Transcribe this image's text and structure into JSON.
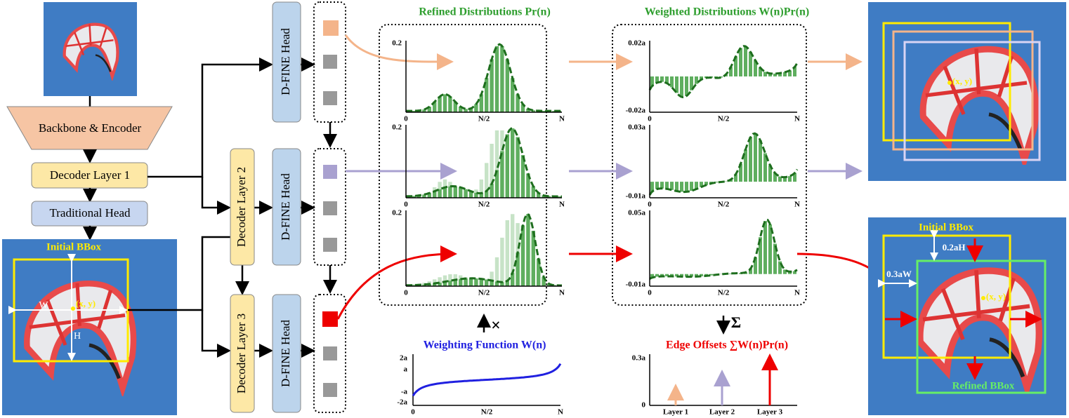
{
  "left": {
    "backbone": "Backbone & Encoder",
    "decoder1": "Decoder Layer 1",
    "traditional_head": "Traditional Head",
    "initial_box": {
      "label": "Initial BBox",
      "w": "W",
      "h": "H",
      "center": "(x, y)"
    }
  },
  "decoders": [
    "Decoder Layer 2",
    "Decoder Layer 3"
  ],
  "heads": [
    "D-FINE Head",
    "D-FINE Head",
    "D-FINE Head"
  ],
  "refined": {
    "title": "Refined Distributions Pr(n)",
    "plots": [
      {
        "ytop": "0.2",
        "ybottom": "0",
        "xmid": "N/2",
        "xmax": "N"
      },
      {
        "ytop": "0.2",
        "ybottom": "0",
        "xmid": "N/2",
        "xmax": "N"
      },
      {
        "ytop": "0.2",
        "ybottom": "0",
        "xmid": "N/2",
        "xmax": "N"
      }
    ]
  },
  "weighted": {
    "title": "Weighted Distributions W(n)Pr(n)",
    "plots": [
      {
        "ytop": "0.02a",
        "ybottom": "-0.02a",
        "xmin": "0",
        "xmid": "N/2",
        "xmax": "N"
      },
      {
        "ytop": "0.03a",
        "ybottom": "-0.01a",
        "xmin": "0",
        "xmid": "N/2",
        "xmax": "N"
      },
      {
        "ytop": "0.05a",
        "ybottom": "-0.01a",
        "xmin": "0",
        "xmid": "N/2",
        "xmax": "N"
      }
    ]
  },
  "operators": {
    "times": "×",
    "sigma": "Σ"
  },
  "weighting": {
    "title": "Weighting Function W(n)",
    "yticks": [
      "2a",
      "a",
      "-a",
      "-2a"
    ],
    "xticks": [
      "0",
      "N/2",
      "N"
    ]
  },
  "offsets": {
    "title": "Edge Offsets ∑W(n)Pr(n)",
    "yticks": [
      "0.3a",
      "0"
    ],
    "layers": [
      "Layer 1",
      "Layer 2",
      "Layer 3"
    ]
  },
  "result": {
    "initial": "Initial BBox",
    "refined": "Refined BBox",
    "dh": "0.2aH",
    "dw": "0.3aW",
    "center": "(x, y)"
  }
}
